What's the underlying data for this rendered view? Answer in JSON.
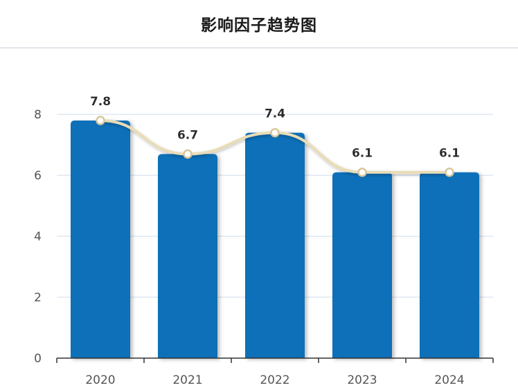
{
  "chart_data": {
    "type": "bar",
    "title": "影响因子趋势图",
    "categories": [
      "2020",
      "2021",
      "2022",
      "2023",
      "2024"
    ],
    "values": [
      7.8,
      6.7,
      7.4,
      6.1,
      6.1
    ],
    "data_labels": [
      "7.8",
      "6.7",
      "7.4",
      "6.1",
      "6.1"
    ],
    "overlay_line": true,
    "ylim": [
      0,
      8.8
    ],
    "yticks": [
      0,
      2,
      4,
      6,
      8
    ],
    "grid": true,
    "xlabel": "",
    "ylabel": "",
    "colors": {
      "bar": "#0a70b8",
      "line": "#e9dcb6",
      "marker_fill": "#ffffff",
      "marker_stroke": "#d8c69a",
      "grid": "#dfe7f3",
      "axis": "#333333"
    }
  }
}
